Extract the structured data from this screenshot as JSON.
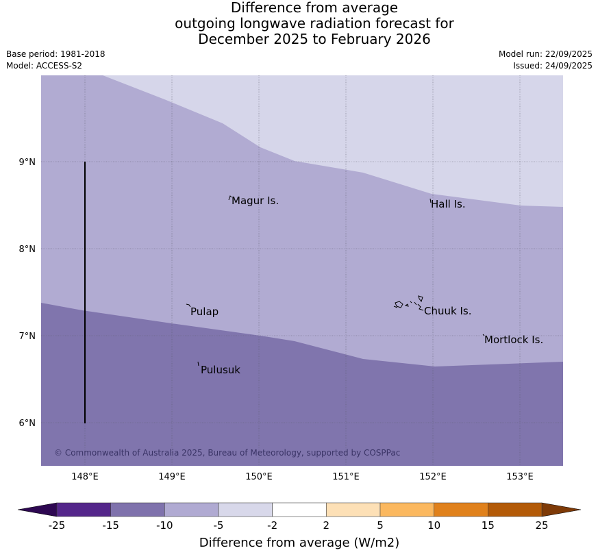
{
  "title": {
    "line1": "Difference from average",
    "line2": "outgoing longwave radiation forecast for",
    "line3": "December 2025 to February 2026"
  },
  "meta": {
    "base_period": "Base period: 1981-2018",
    "model": "Model: ACCESS-S2",
    "model_run": "Model run: 22/09/2025",
    "issued": "Issued: 24/09/2025"
  },
  "map": {
    "lat_labels": [
      "9°N",
      "8°N",
      "7°N",
      "6°N"
    ],
    "lon_labels": [
      "148°E",
      "149°E",
      "150°E",
      "151°E",
      "152°E",
      "153°E"
    ],
    "places": [
      "Magur Is.",
      "Hall Is.",
      "Pulap",
      "Chuuk Is.",
      "Mortlock Is.",
      "Pulusuk"
    ],
    "copyright": "© Commonwealth of Australia 2025, Bureau of Meteorology, supported by COSPPac",
    "colors": {
      "band_lightest": "#d6d6ea",
      "band_mid": "#b1abd2",
      "band_dark": "#8075ad",
      "grid": "#5a5a6a",
      "coast": "#000000"
    }
  },
  "colorbar": {
    "tick_labels": [
      "-25",
      "-15",
      "-10",
      "-5",
      "-2",
      "2",
      "5",
      "10",
      "15",
      "25"
    ],
    "segment_colors": [
      "#54268a",
      "#7f72ac",
      "#b0aad2",
      "#d8d8ea",
      "#ffffff",
      "#fde0b6",
      "#fbb85f",
      "#e0811c",
      "#b35a07"
    ],
    "low_extend_color": "#2e0852",
    "high_extend_color": "#7e3a07",
    "title": "Difference from average (W/m2)"
  }
}
